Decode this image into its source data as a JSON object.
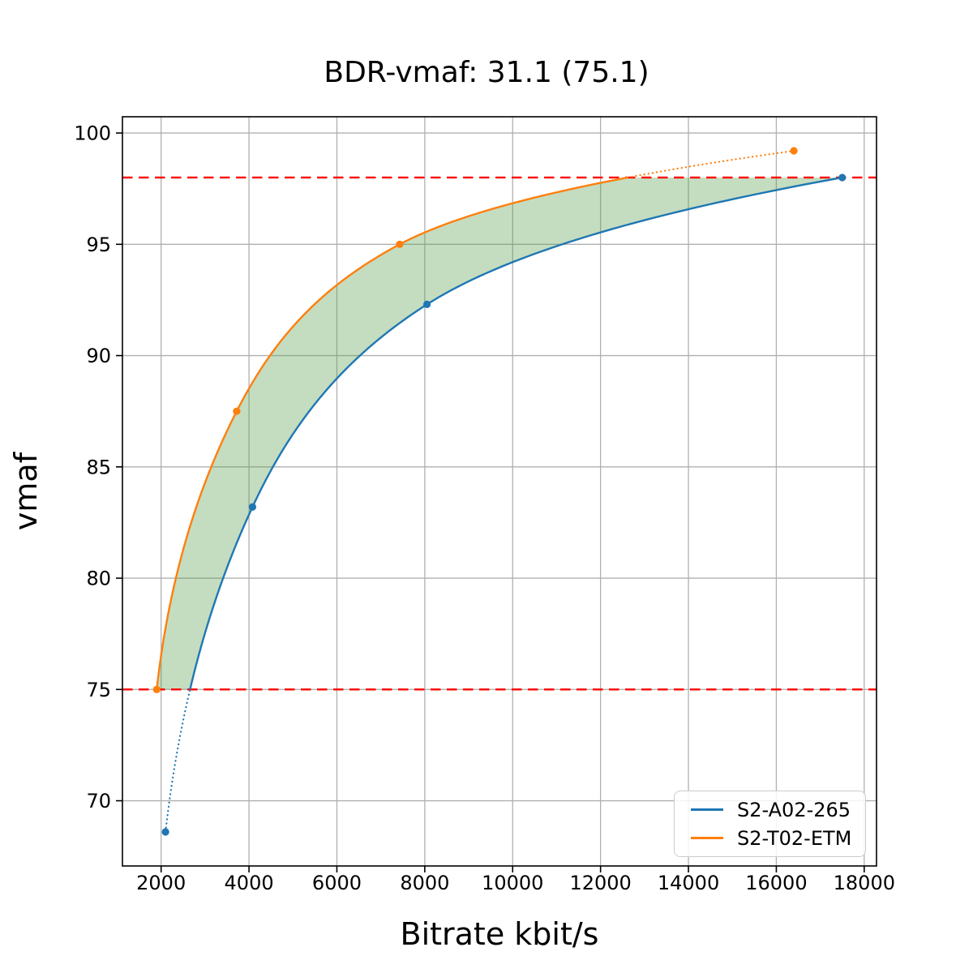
{
  "chart_data": {
    "type": "line",
    "title": "BDR-vmaf: 31.1 (75.1)",
    "xlabel": "Bitrate kbit/s",
    "ylabel": "vmaf",
    "xlim": [
      1120,
      18280
    ],
    "ylim": [
      67.07,
      100.73
    ],
    "x_ticks": [
      2000,
      4000,
      6000,
      8000,
      10000,
      12000,
      14000,
      16000,
      18000
    ],
    "y_ticks": [
      70,
      75,
      80,
      85,
      90,
      95,
      100
    ],
    "grid": true,
    "grid_color": "#b0b0b0",
    "background_color": "#ffffff",
    "bd_limits": {
      "low": 75,
      "high": 98,
      "line_color": "#ff0000",
      "line_style": "dashed"
    },
    "fill_between": {
      "color": "#569e4b",
      "opacity": 0.35,
      "vmaf_range": [
        75,
        98
      ]
    },
    "legend_position": "lower right",
    "series": [
      {
        "name": "S2-A02-265",
        "color": "#1f77b4",
        "x_bitrate_kbits": [
          2100,
          4080,
          8050,
          17500
        ],
        "y_vmaf": [
          68.6,
          83.2,
          92.3,
          98.0
        ]
      },
      {
        "name": "S2-T02-ETM",
        "color": "#ff7f0e",
        "x_bitrate_kbits": [
          1900,
          3720,
          7430,
          16400
        ],
        "y_vmaf": [
          75.0,
          87.5,
          95.0,
          99.2
        ]
      }
    ]
  }
}
